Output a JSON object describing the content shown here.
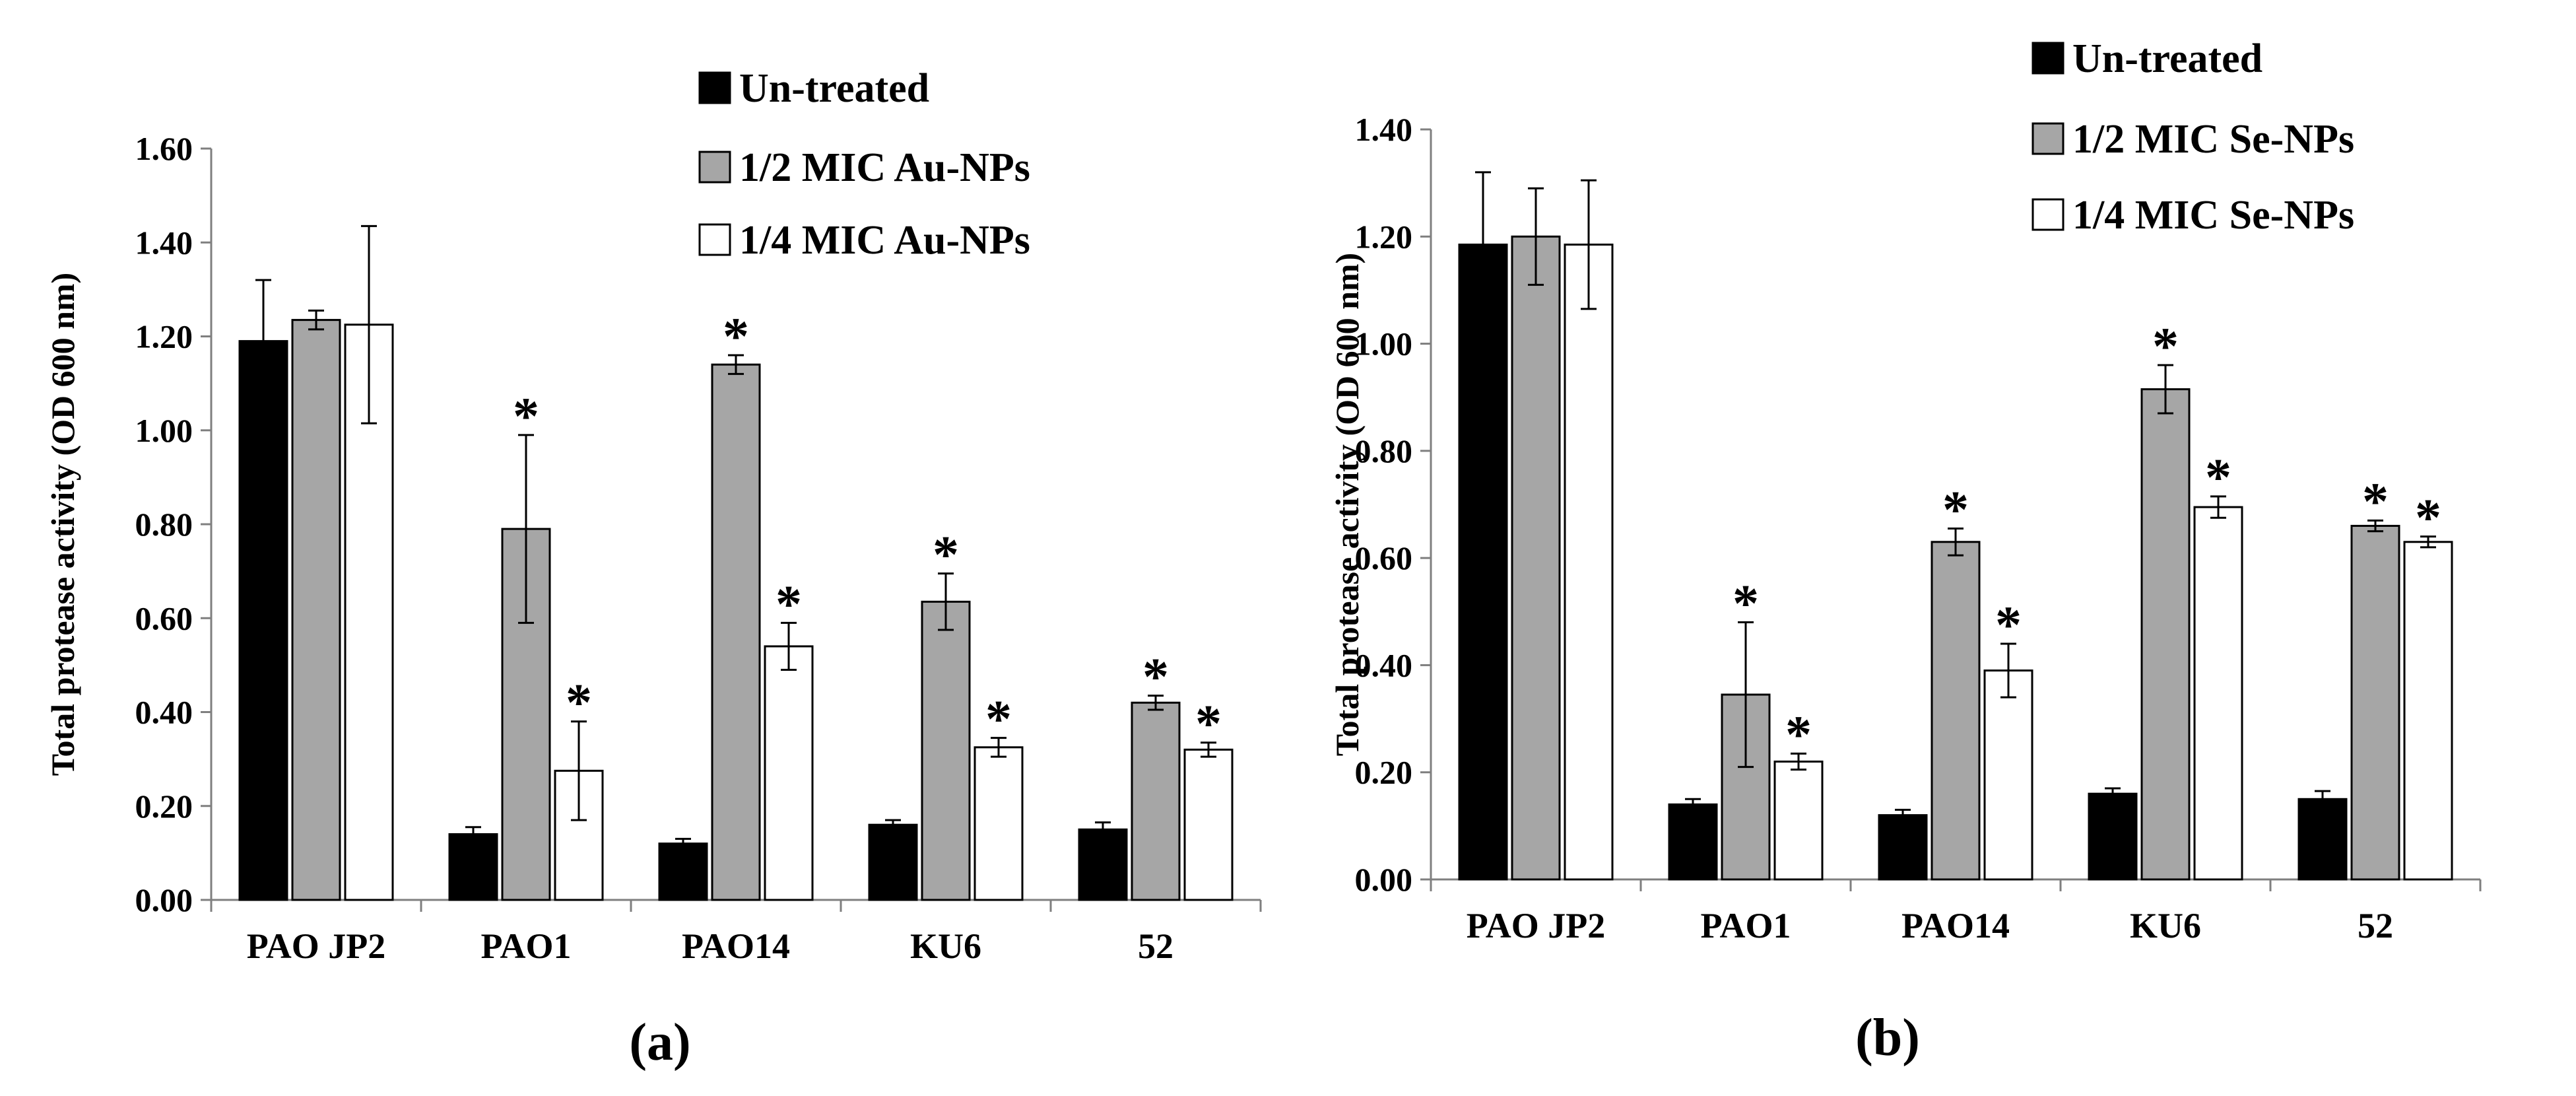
{
  "chart_data": [
    {
      "type": "bar",
      "panel_label": "(a)",
      "ylabel": "Total protease activity (OD 600 nm)",
      "ylim": [
        0,
        1.6
      ],
      "yticks": [
        "0.00",
        "0.20",
        "0.40",
        "0.60",
        "0.80",
        "1.00",
        "1.20",
        "1.40",
        "1.60"
      ],
      "categories": [
        "PAO JP2",
        "PAO1",
        "PAO14",
        "KU6",
        "52"
      ],
      "series": [
        {
          "name": "Un-treated",
          "color": "#000000",
          "values": [
            1.19,
            0.14,
            0.12,
            0.16,
            0.15
          ],
          "errors": [
            0.13,
            0.015,
            0.01,
            0.01,
            0.015
          ],
          "significant": [
            false,
            false,
            false,
            false,
            false
          ]
        },
        {
          "name": "1/2 MIC Au-NPs",
          "color": "#a6a6a6",
          "values": [
            1.235,
            0.79,
            1.14,
            0.635,
            0.42
          ],
          "errors": [
            0.02,
            0.2,
            0.02,
            0.06,
            0.015
          ],
          "significant": [
            false,
            true,
            true,
            true,
            true
          ]
        },
        {
          "name": "1/4 MIC Au-NPs",
          "color": "#ffffff",
          "values": [
            1.225,
            0.275,
            0.54,
            0.325,
            0.32
          ],
          "errors": [
            0.21,
            0.105,
            0.05,
            0.02,
            0.015
          ],
          "significant": [
            false,
            true,
            true,
            true,
            true
          ]
        }
      ],
      "significance_marker": "*",
      "legend_position": "top-right"
    },
    {
      "type": "bar",
      "panel_label": "(b)",
      "ylabel": "Total protease activity (OD 600 nm)",
      "ylim": [
        0,
        1.4
      ],
      "yticks": [
        "0.00",
        "0.20",
        "0.40",
        "0.60",
        "0.80",
        "1.00",
        "1.20",
        "1.40"
      ],
      "categories": [
        "PAO JP2",
        "PAO1",
        "PAO14",
        "KU6",
        "52"
      ],
      "series": [
        {
          "name": "Un-treated",
          "color": "#000000",
          "values": [
            1.185,
            0.14,
            0.12,
            0.16,
            0.15
          ],
          "errors": [
            0.135,
            0.01,
            0.01,
            0.01,
            0.015
          ],
          "significant": [
            false,
            false,
            false,
            false,
            false
          ]
        },
        {
          "name": "1/2 MIC Se-NPs",
          "color": "#a6a6a6",
          "values": [
            1.2,
            0.345,
            0.63,
            0.915,
            0.66
          ],
          "errors": [
            0.09,
            0.135,
            0.025,
            0.045,
            0.01
          ],
          "significant": [
            false,
            true,
            true,
            true,
            true
          ]
        },
        {
          "name": "1/4 MIC Se-NPs",
          "color": "#ffffff",
          "values": [
            1.185,
            0.22,
            0.39,
            0.695,
            0.63
          ],
          "errors": [
            0.12,
            0.015,
            0.05,
            0.02,
            0.01
          ],
          "significant": [
            false,
            true,
            true,
            true,
            true
          ]
        }
      ],
      "significance_marker": "*",
      "legend_position": "top-right"
    }
  ]
}
